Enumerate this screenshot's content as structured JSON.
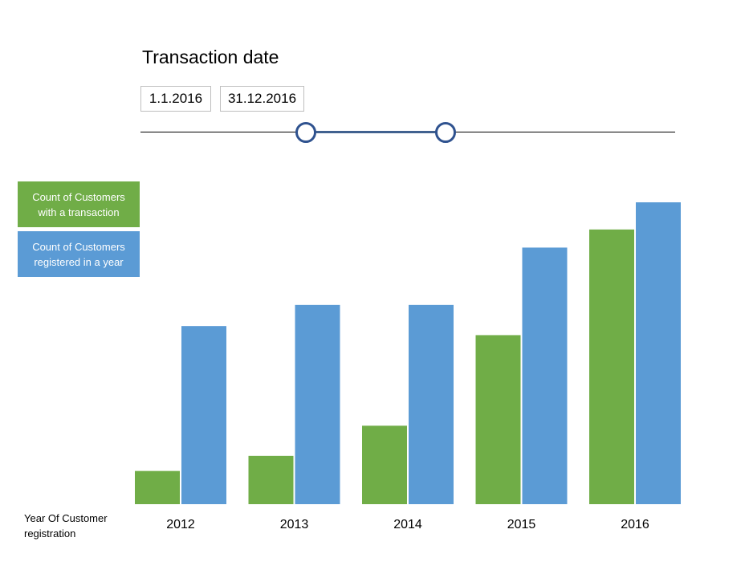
{
  "filter": {
    "title": "Transaction date",
    "start_date": "1.1.2016",
    "end_date": "31.12.2016",
    "range_start": 0.31,
    "range_end": 0.57
  },
  "colors": {
    "transactions": "#70ad47",
    "registered": "#5b9bd5",
    "slider": "#2f528f"
  },
  "chart_data": {
    "type": "bar",
    "title": "",
    "xlabel": "Year Of Customer registration",
    "xlabel_lines": [
      "Year Of Customer",
      "registration"
    ],
    "ylabel": "",
    "ylim": [
      0,
      100
    ],
    "grid": false,
    "legend_position": "left",
    "categories": [
      "2012",
      "2013",
      "2014",
      "2015",
      "2016"
    ],
    "series": [
      {
        "name": "Count of Customers with a transaction",
        "name_lines": [
          "Count of Customers",
          "with a transaction"
        ],
        "values": [
          11,
          16,
          26,
          56,
          91
        ]
      },
      {
        "name": "Count of Customers registered in a year",
        "name_lines": [
          "Count of Customers",
          "registered in a year"
        ],
        "values": [
          59,
          66,
          66,
          85,
          100
        ]
      }
    ]
  }
}
